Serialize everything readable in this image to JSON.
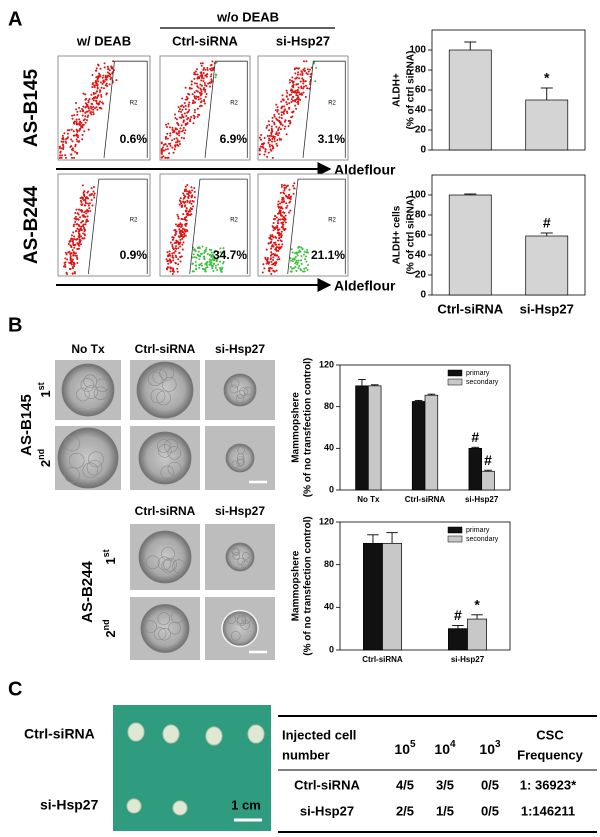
{
  "chart_data": [
    {
      "type": "bar",
      "ylabel": [
        "ALDH+",
        "(% of ctrl siRNA)"
      ],
      "categories": [
        null,
        null
      ],
      "values": [
        100,
        50
      ],
      "errors": [
        8,
        12
      ],
      "annotations": [
        null,
        "*"
      ],
      "color": "#d4d4d4",
      "ylim": [
        0,
        120
      ],
      "yticks": [
        0,
        20,
        40,
        60,
        80,
        100
      ]
    },
    {
      "type": "bar",
      "ylabel": [
        "ALDH+ cells",
        "(% of ctrl siRNA)"
      ],
      "categories": [
        "Ctrl-siRNA",
        "si-Hsp27"
      ],
      "values": [
        100,
        59
      ],
      "errors": [
        1,
        3
      ],
      "annotations": [
        null,
        "#"
      ],
      "color": "#d4d4d4",
      "ylim": [
        0,
        120
      ],
      "yticks": [
        0,
        20,
        40,
        60,
        80,
        100
      ]
    },
    {
      "type": "bar",
      "ylabel": [
        "Mammopshere",
        "(% of no transfection control)"
      ],
      "categories": [
        "No Tx",
        "Ctrl-siRNA",
        "si-Hsp27"
      ],
      "series": [
        {
          "name": "primary",
          "color": "#111111",
          "values": [
            100,
            85,
            40
          ],
          "errors": [
            6,
            1,
            1
          ],
          "annotations": [
            null,
            null,
            "#"
          ]
        },
        {
          "name": "secondary",
          "color": "#c8c8c8",
          "values": [
            100,
            91,
            18
          ],
          "errors": [
            1,
            1,
            1
          ],
          "annotations": [
            null,
            null,
            "#"
          ]
        }
      ],
      "legend": "top-right",
      "ylim": [
        0,
        120
      ],
      "yticks": [
        0,
        40,
        80,
        120
      ]
    },
    {
      "type": "bar",
      "ylabel": [
        "Mammopshere",
        "(% of no transfection control)"
      ],
      "categories": [
        "Ctrl-siRNA",
        "si-Hsp27"
      ],
      "series": [
        {
          "name": "primary",
          "color": "#111111",
          "values": [
            100,
            20
          ],
          "errors": [
            8,
            3
          ],
          "annotations": [
            null,
            "#"
          ]
        },
        {
          "name": "secondary",
          "color": "#c8c8c8",
          "values": [
            100,
            29
          ],
          "errors": [
            10,
            4
          ],
          "annotations": [
            null,
            "*"
          ]
        }
      ],
      "legend": "top-right",
      "ylim": [
        0,
        120
      ],
      "yticks": [
        0,
        40,
        80,
        120
      ]
    }
  ],
  "panel_a": {
    "label": "A",
    "header_without": "w/o DEAB",
    "columns": [
      "w/ DEAB",
      "Ctrl-siRNA",
      "si-Hsp27"
    ],
    "rows": [
      {
        "name": "AS-B145",
        "percents": [
          "0.6%",
          "6.9%",
          "3.1%"
        ]
      },
      {
        "name": "AS-B244",
        "percents": [
          "0.9%",
          "34.7%",
          "21.1%"
        ]
      }
    ],
    "gate_label": "R2",
    "axis_label": "Aldeflour"
  },
  "panel_b": {
    "label": "B",
    "blocks": [
      {
        "name": "AS-B145",
        "columns": [
          "No Tx",
          "Ctrl-siRNA",
          "si-Hsp27"
        ]
      },
      {
        "name": "AS-B244",
        "columns": [
          "Ctrl-siRNA",
          "si-Hsp27"
        ]
      }
    ],
    "rounds": [
      {
        "num": "1",
        "suffix": "st"
      },
      {
        "num": "2",
        "suffix": "nd"
      }
    ]
  },
  "panel_c": {
    "label": "C",
    "photo_labels": [
      "Ctrl-siRNA",
      "si-Hsp27"
    ],
    "scale": "1 cm",
    "table": {
      "header": {
        "first": [
          "Injected cell",
          "number"
        ],
        "doses": [
          {
            "base": "10",
            "exp": "5"
          },
          {
            "base": "10",
            "exp": "4"
          },
          {
            "base": "10",
            "exp": "3"
          }
        ],
        "last": [
          "CSC",
          "Frequency"
        ]
      },
      "rows": [
        [
          "Ctrl-siRNA",
          "4/5",
          "3/5",
          "0/5",
          "1: 36923*"
        ],
        [
          "si-Hsp27",
          "2/5",
          "1/5",
          "0/5",
          "1:146211"
        ]
      ]
    }
  }
}
